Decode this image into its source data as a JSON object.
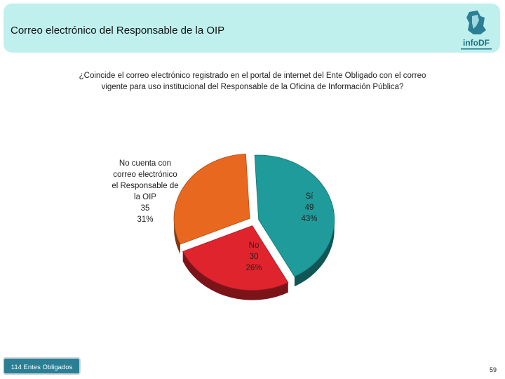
{
  "header": {
    "title": "Correo electrónico del Responsable de la OIP"
  },
  "logo": {
    "text": "infoDF"
  },
  "chart_data": {
    "type": "pie",
    "title": "¿Coincide el correo electrónico registrado en el portal de internet del Ente Obligado con el correo vigente para uso institucional del Responsable de la Oficina de Información Pública?",
    "slices": [
      {
        "label_lines": [
          "Sí"
        ],
        "value": 49,
        "percent": "43%",
        "color": "#1e9b9a"
      },
      {
        "label_lines": [
          "No"
        ],
        "value": 30,
        "percent": "26%",
        "color": "#e0242e"
      },
      {
        "label_lines": [
          "No cuenta con",
          "correo electrónico",
          "el Responsable de",
          "la OIP"
        ],
        "value": 35,
        "percent": "31%",
        "color": "#e8681f"
      }
    ]
  },
  "footer": {
    "note": "114 Entes Obligados",
    "page_number": "59"
  }
}
